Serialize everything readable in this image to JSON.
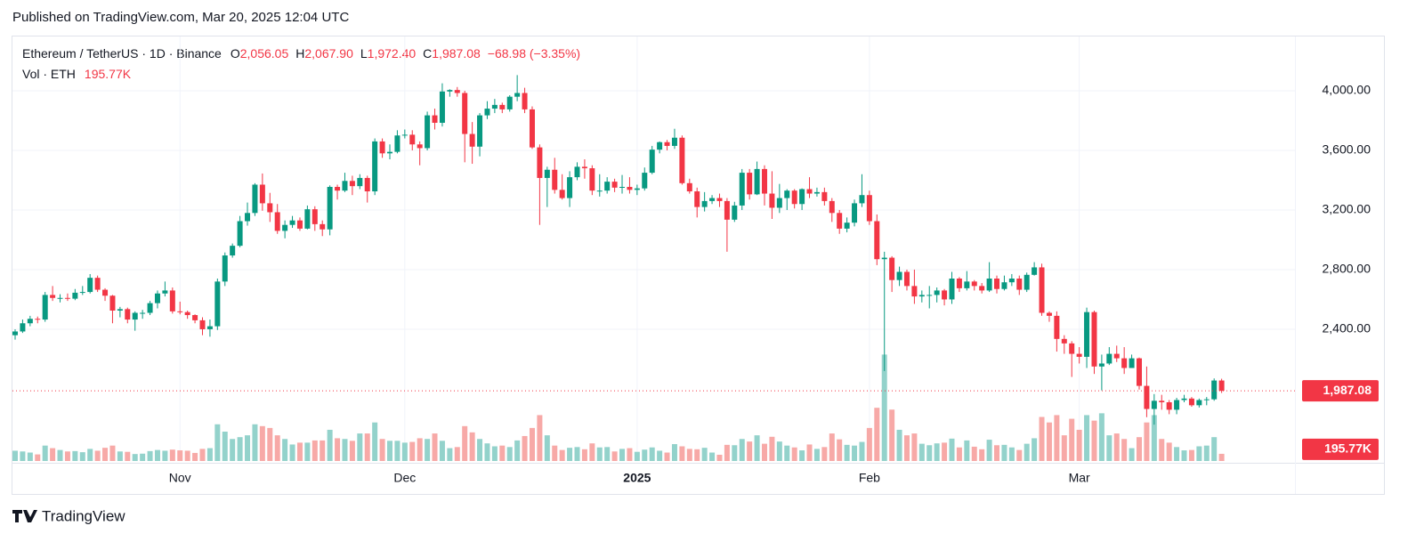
{
  "header": {
    "published": "Published on TradingView.com, Mar 20, 2025 12:04 UTC",
    "brand": "TradingView"
  },
  "chart_data": {
    "type": "candlestick",
    "legend": {
      "symbol": "Ethereum / TetherUS · 1D · Binance",
      "open_label": "O",
      "open": "2,056.05",
      "high_label": "H",
      "high": "2,067.90",
      "low_label": "L",
      "low": "1,972.40",
      "close_label": "C",
      "close": "1,987.08",
      "change": "−68.98 (−3.35%)",
      "volume_title": "Vol · ETH",
      "volume": "195.77K"
    },
    "up_color": "#089981",
    "down_color": "#f23645",
    "volume_up_color": "#93d2cb",
    "volume_down_color": "#f7a9a7",
    "ylim": [
      1516,
      4370
    ],
    "yticks": [
      {
        "value": 2400,
        "label": "2,400.00"
      },
      {
        "value": 2800,
        "label": "2,800.00"
      },
      {
        "value": 3200,
        "label": "3,200.00"
      },
      {
        "value": 3600,
        "label": "3,600.00"
      },
      {
        "value": 4000,
        "label": "4,000.00"
      }
    ],
    "volume_lim": [
      0,
      4000
    ],
    "grid": true,
    "categories": [
      null,
      null,
      null,
      null,
      null,
      null,
      null,
      null,
      null,
      null,
      null,
      null,
      null,
      null,
      null,
      null,
      null,
      null,
      null,
      null,
      null,
      null,
      "Nov",
      null,
      null,
      null,
      null,
      null,
      null,
      null,
      null,
      null,
      null,
      null,
      null,
      null,
      null,
      null,
      null,
      null,
      null,
      null,
      null,
      null,
      null,
      null,
      null,
      null,
      null,
      null,
      null,
      null,
      "Dec",
      null,
      null,
      null,
      null,
      null,
      null,
      null,
      null,
      null,
      null,
      null,
      null,
      null,
      null,
      null,
      null,
      null,
      null,
      null,
      null,
      null,
      null,
      null,
      null,
      null,
      null,
      null,
      null,
      null,
      null,
      "2025",
      null,
      null,
      null,
      null,
      null,
      null,
      null,
      null,
      null,
      null,
      null,
      null,
      null,
      null,
      null,
      null,
      null,
      null,
      null,
      null,
      null,
      null,
      null,
      null,
      null,
      null,
      null,
      null,
      null,
      null,
      "Feb",
      null,
      null,
      null,
      null,
      null,
      null,
      null,
      null,
      null,
      null,
      null,
      null,
      null,
      null,
      null,
      null,
      null,
      null,
      null,
      null,
      null,
      null,
      null,
      null,
      null,
      null,
      null,
      "Mar",
      null,
      null,
      null,
      null,
      null,
      null,
      null,
      null,
      null,
      null,
      null,
      null,
      null,
      null,
      null,
      null,
      null,
      null,
      null
    ],
    "open": [
      2360,
      2385,
      2440,
      2470,
      2465,
      2630,
      2610,
      2610,
      2605,
      2645,
      2650,
      2745,
      2665,
      2625,
      2525,
      2535,
      2465,
      2510,
      2510,
      2575,
      2640,
      2660,
      2520,
      2515,
      2495,
      2460,
      2400,
      2420,
      2720,
      2895,
      2960,
      3125,
      3180,
      3370,
      3245,
      3185,
      3060,
      3100,
      3130,
      3075,
      3205,
      3105,
      3070,
      3355,
      3330,
      3395,
      3360,
      3415,
      3325,
      3660,
      3580,
      3590,
      3700,
      3705,
      3640,
      3615,
      3835,
      3785,
      3995,
      4005,
      3985,
      3710,
      3625,
      3835,
      3880,
      3905,
      3875,
      3960,
      3985,
      3875,
      3620,
      3415,
      3470,
      3335,
      3280,
      3420,
      3490,
      3480,
      3330,
      3330,
      3390,
      3350,
      3355,
      3335,
      3345,
      3450,
      3605,
      3655,
      3630,
      3685,
      3380,
      3325,
      3220,
      3260,
      3280,
      3260,
      3135,
      3230,
      3450,
      3305,
      3475,
      3310,
      3215,
      3280,
      3330,
      3240,
      3340,
      3310,
      3320,
      3260,
      3180,
      3075,
      3115,
      3245,
      3300,
      3125,
      2870,
      2880,
      2730,
      2785,
      2690,
      2620,
      2630,
      2630,
      2660,
      2600,
      2740,
      2675,
      2720,
      2690,
      2660,
      2740,
      2670,
      2715,
      2740,
      2665,
      2765,
      2815,
      2510,
      2490,
      2335,
      2305,
      2235,
      2215,
      2515,
      2150,
      2170,
      2235,
      2205,
      2140,
      2205,
      2020,
      1865,
      1920,
      1910,
      1860,
      1925,
      1935,
      1890,
      1925,
      1930,
      2056.05
    ],
    "high": [
      2400,
      2465,
      2490,
      2485,
      2650,
      2690,
      2635,
      2640,
      2670,
      2690,
      2770,
      2760,
      2675,
      2630,
      2550,
      2545,
      2520,
      2530,
      2590,
      2660,
      2720,
      2680,
      2585,
      2525,
      2500,
      2480,
      2465,
      2740,
      2915,
      2975,
      3160,
      3250,
      3380,
      3445,
      3315,
      3240,
      3130,
      3160,
      3150,
      3230,
      3225,
      3130,
      3365,
      3370,
      3450,
      3430,
      3440,
      3430,
      3680,
      3680,
      3640,
      3735,
      3740,
      3735,
      3660,
      3860,
      3880,
      4050,
      4010,
      4025,
      4000,
      3790,
      3850,
      3930,
      3945,
      3920,
      3970,
      4105,
      4020,
      3895,
      3640,
      3490,
      3550,
      3440,
      3460,
      3520,
      3540,
      3500,
      3440,
      3420,
      3410,
      3435,
      3420,
      3370,
      3485,
      3630,
      3660,
      3670,
      3745,
      3700,
      3410,
      3350,
      3320,
      3300,
      3310,
      3280,
      3255,
      3475,
      3475,
      3525,
      3500,
      3460,
      3375,
      3340,
      3340,
      3345,
      3420,
      3350,
      3350,
      3280,
      3200,
      3150,
      3270,
      3440,
      3330,
      3170,
      2920,
      2890,
      2820,
      2800,
      2800,
      2660,
      2690,
      2680,
      2670,
      2785,
      2750,
      2790,
      2730,
      2710,
      2850,
      2760,
      2760,
      2770,
      2760,
      2780,
      2850,
      2840,
      2520,
      2520,
      2360,
      2320,
      2280,
      2545,
      2525,
      2230,
      2280,
      2290,
      2280,
      2230,
      2210,
      2150,
      1965,
      1960,
      1925,
      1940,
      1960,
      1945,
      1935,
      1945,
      2070,
      2067.9
    ],
    "low": [
      2330,
      2375,
      2420,
      2440,
      2450,
      2590,
      2580,
      2590,
      2595,
      2630,
      2640,
      2650,
      2590,
      2440,
      2480,
      2440,
      2390,
      2470,
      2495,
      2540,
      2620,
      2505,
      2500,
      2470,
      2440,
      2360,
      2350,
      2395,
      2690,
      2880,
      2950,
      3095,
      3160,
      3195,
      3120,
      3040,
      3010,
      3080,
      3060,
      3070,
      3060,
      3025,
      3030,
      3270,
      3320,
      3300,
      3340,
      3250,
      3300,
      3550,
      3540,
      3580,
      3680,
      3600,
      3500,
      3600,
      3740,
      3760,
      3960,
      3960,
      3520,
      3510,
      3560,
      3810,
      3850,
      3850,
      3860,
      3930,
      3850,
      3610,
      3100,
      3220,
      3310,
      3270,
      3220,
      3400,
      3410,
      3300,
      3290,
      3310,
      3320,
      3310,
      3310,
      3300,
      3330,
      3440,
      3580,
      3600,
      3610,
      3370,
      3310,
      3150,
      3190,
      3240,
      3220,
      2920,
      3120,
      3200,
      3270,
      3300,
      3230,
      3140,
      3180,
      3200,
      3210,
      3200,
      3280,
      3290,
      3230,
      3120,
      3040,
      3050,
      3090,
      3220,
      3100,
      2830,
      2120,
      2650,
      2690,
      2660,
      2570,
      2580,
      2540,
      2580,
      2560,
      2570,
      2650,
      2660,
      2660,
      2640,
      2650,
      2640,
      2660,
      2690,
      2630,
      2650,
      2760,
      2490,
      2450,
      2250,
      2235,
      2080,
      2170,
      2140,
      2100,
      1990,
      2160,
      2180,
      2100,
      2140,
      1995,
      1810,
      1760,
      1860,
      1830,
      1830,
      1910,
      1880,
      1875,
      1890,
      1920,
      1972.4
    ],
    "close": [
      2385,
      2440,
      2470,
      2465,
      2630,
      2610,
      2610,
      2605,
      2645,
      2650,
      2745,
      2665,
      2625,
      2525,
      2535,
      2465,
      2510,
      2510,
      2575,
      2640,
      2660,
      2520,
      2515,
      2495,
      2460,
      2400,
      2420,
      2720,
      2895,
      2960,
      3125,
      3180,
      3370,
      3245,
      3185,
      3060,
      3100,
      3130,
      3075,
      3205,
      3105,
      3070,
      3355,
      3330,
      3395,
      3360,
      3415,
      3325,
      3660,
      3580,
      3590,
      3700,
      3705,
      3640,
      3615,
      3835,
      3785,
      3995,
      4005,
      3985,
      3710,
      3625,
      3835,
      3880,
      3905,
      3875,
      3960,
      3985,
      3875,
      3620,
      3415,
      3470,
      3335,
      3280,
      3420,
      3490,
      3480,
      3330,
      3330,
      3390,
      3350,
      3355,
      3335,
      3345,
      3450,
      3605,
      3655,
      3630,
      3685,
      3380,
      3325,
      3220,
      3260,
      3280,
      3260,
      3135,
      3230,
      3450,
      3305,
      3475,
      3310,
      3215,
      3280,
      3330,
      3240,
      3340,
      3310,
      3320,
      3260,
      3180,
      3075,
      3115,
      3245,
      3300,
      3125,
      2870,
      2880,
      2730,
      2785,
      2690,
      2620,
      2630,
      2630,
      2660,
      2600,
      2740,
      2675,
      2720,
      2690,
      2660,
      2740,
      2670,
      2715,
      2740,
      2665,
      2765,
      2815,
      2510,
      2490,
      2335,
      2305,
      2235,
      2215,
      2515,
      2150,
      2170,
      2235,
      2205,
      2140,
      2205,
      2020,
      1865,
      1920,
      1910,
      1860,
      1925,
      1935,
      1890,
      1925,
      1930,
      2056.05,
      1987.08
    ],
    "volume": [
      280,
      260,
      230,
      180,
      420,
      350,
      300,
      260,
      270,
      240,
      330,
      280,
      360,
      420,
      260,
      250,
      190,
      200,
      270,
      300,
      280,
      310,
      290,
      280,
      220,
      330,
      350,
      1000,
      800,
      600,
      650,
      700,
      1000,
      950,
      900,
      700,
      600,
      450,
      500,
      500,
      560,
      560,
      850,
      620,
      600,
      550,
      750,
      750,
      1050,
      600,
      550,
      550,
      500,
      520,
      620,
      600,
      750,
      550,
      350,
      380,
      950,
      780,
      600,
      480,
      400,
      420,
      380,
      560,
      680,
      900,
      1250,
      700,
      420,
      300,
      360,
      380,
      320,
      480,
      370,
      380,
      260,
      330,
      350,
      250,
      310,
      370,
      280,
      230,
      460,
      400,
      330,
      320,
      360,
      230,
      170,
      440,
      430,
      600,
      530,
      700,
      470,
      660,
      530,
      420,
      370,
      290,
      450,
      330,
      380,
      750,
      590,
      440,
      420,
      520,
      900,
      1450,
      2900,
      1400,
      850,
      700,
      750,
      470,
      430,
      480,
      500,
      610,
      370,
      560,
      390,
      320,
      580,
      430,
      440,
      370,
      300,
      470,
      620,
      1200,
      1050,
      1250,
      700,
      1150,
      850,
      1250,
      1100,
      1300,
      700,
      750,
      600,
      350,
      650,
      1050,
      1250,
      600,
      500,
      380,
      290,
      300,
      400,
      420,
      650,
      195.77
    ]
  }
}
